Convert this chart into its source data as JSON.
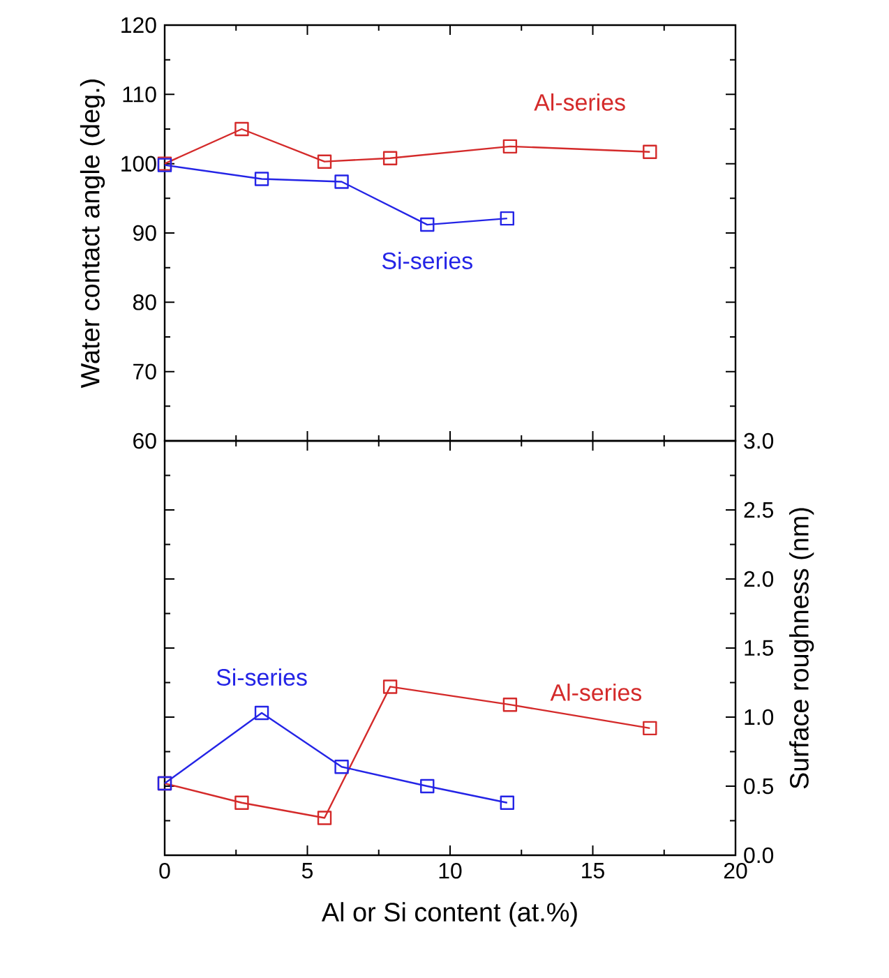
{
  "chart_data": [
    {
      "type": "line",
      "ylabel": "Water contact angle (deg.)",
      "xlim": [
        0,
        20
      ],
      "xticks": [
        0,
        5,
        10,
        15,
        20
      ],
      "ylim": [
        60,
        120
      ],
      "yticks": [
        60,
        70,
        80,
        90,
        100,
        110,
        120
      ],
      "tick_labels": "y",
      "marker": "square",
      "line_style": "solid",
      "series": [
        {
          "name": "Al-series",
          "color": "#d42a2a",
          "x": [
            0,
            2.7,
            5.6,
            7.9,
            12.1,
            17
          ],
          "values": [
            100,
            105,
            100.3,
            100.8,
            102.5,
            101.7
          ]
        },
        {
          "name": "Si-series",
          "color": "#2424e6",
          "x": [
            0,
            3.4,
            6.2,
            9.2,
            12
          ],
          "values": [
            99.8,
            97.8,
            97.4,
            91.2,
            92.1
          ]
        }
      ]
    },
    {
      "type": "line",
      "xlabel": "Al or Si content (at.%)",
      "y2label": "Surface roughness (nm)",
      "xlim": [
        0,
        20
      ],
      "xticks": [
        0,
        5,
        10,
        15,
        20
      ],
      "y2lim": [
        0,
        3
      ],
      "y2ticks": [
        {
          "value": 0,
          "label": "0.0"
        },
        0.5,
        {
          "value": 1,
          "label": "1.0"
        },
        1.5,
        {
          "value": 2,
          "label": "2.0"
        },
        2.5,
        {
          "value": 3,
          "label": "3.0"
        }
      ],
      "marker": "square",
      "line_style": "solid",
      "series": [
        {
          "name": "Al-series",
          "color": "#d42a2a",
          "axis": "y2",
          "x": [
            0,
            2.7,
            5.6,
            7.9,
            12.1,
            17
          ],
          "values": [
            0.52,
            0.38,
            0.27,
            1.22,
            1.09,
            0.92
          ]
        },
        {
          "name": "Si-series",
          "color": "#2424e6",
          "axis": "y2",
          "x": [
            0,
            3.4,
            6.2,
            9.2,
            12
          ],
          "values": [
            0.52,
            1.03,
            0.64,
            0.5,
            0.38
          ]
        }
      ]
    }
  ]
}
